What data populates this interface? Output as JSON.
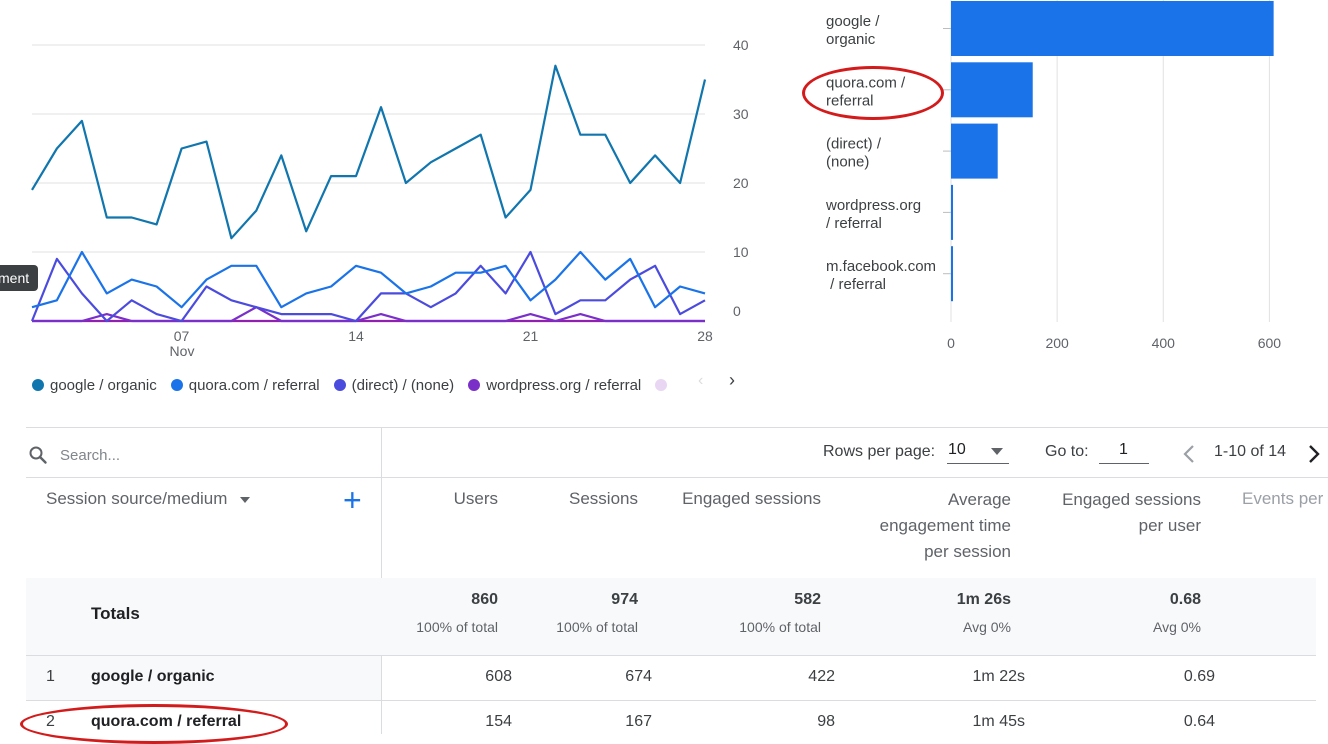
{
  "line_chart": {
    "type": "line",
    "y_ticks": [
      "0",
      "10",
      "20",
      "30",
      "40"
    ],
    "ylim": [
      0,
      40
    ],
    "x_ticks": [
      {
        "day": 7,
        "label": "07",
        "sublabel": "Nov"
      },
      {
        "day": 14,
        "label": "14",
        "sublabel": ""
      },
      {
        "day": 21,
        "label": "21",
        "sublabel": ""
      },
      {
        "day": 28,
        "label": "28",
        "sublabel": ""
      }
    ],
    "x_days": [
      1,
      2,
      3,
      4,
      5,
      6,
      7,
      8,
      9,
      10,
      11,
      12,
      13,
      14,
      15,
      16,
      17,
      18,
      19,
      20,
      21,
      22,
      23,
      24,
      25,
      26,
      27,
      28
    ],
    "series": [
      {
        "name": "google / organic",
        "color": "#1076ad",
        "values": [
          19,
          25,
          29,
          15,
          15,
          14,
          25,
          26,
          12,
          16,
          24,
          13,
          21,
          21,
          31,
          20,
          23,
          25,
          27,
          15,
          19,
          37,
          27,
          27,
          20,
          24,
          20,
          35
        ]
      },
      {
        "name": "quora.com / referral",
        "color": "#1a73e8",
        "values": [
          2,
          3,
          10,
          4,
          6,
          5,
          2,
          6,
          8,
          8,
          2,
          4,
          5,
          8,
          7,
          4,
          5,
          7,
          7,
          8,
          3,
          6,
          10,
          6,
          9,
          2,
          5,
          4
        ]
      },
      {
        "name": "(direct) / (none)",
        "color": "#4b4bde",
        "values": [
          0,
          9,
          4,
          0,
          3,
          1,
          0,
          5,
          3,
          2,
          1,
          1,
          1,
          0,
          4,
          4,
          2,
          4,
          8,
          4,
          10,
          1,
          3,
          3,
          6,
          8,
          1,
          3
        ]
      },
      {
        "name": "wordpress.org / referral",
        "color": "#7b2fc9",
        "values": [
          0,
          0,
          0,
          1,
          0,
          0,
          0,
          0,
          0,
          2,
          0,
          0,
          0,
          0,
          1,
          0,
          0,
          0,
          0,
          0,
          1,
          0,
          1,
          0,
          0,
          0,
          0,
          0
        ]
      },
      {
        "name": "",
        "color": "#8f20b0",
        "values": [
          0,
          0,
          0,
          0,
          0,
          0,
          0,
          0,
          0,
          0,
          0,
          0,
          0,
          0,
          0,
          0,
          0,
          0,
          0,
          0,
          0,
          0,
          0,
          0,
          0,
          0,
          0,
          0
        ]
      }
    ]
  },
  "legend": {
    "items": [
      {
        "label": "google / organic",
        "color": "#1076ad"
      },
      {
        "label": "quora.com / referral",
        "color": "#1a73e8"
      },
      {
        "label": "(direct) / (none)",
        "color": "#4b4bde"
      },
      {
        "label": "wordpress.org / referral",
        "color": "#7b2fc9"
      }
    ],
    "prev_glyph": "‹",
    "next_glyph": "›"
  },
  "tooltip_tab": "ment",
  "bar_chart": {
    "type": "bar",
    "orientation": "horizontal",
    "xlim": [
      0,
      620
    ],
    "x_ticks": [
      "0",
      "200",
      "400",
      "600"
    ],
    "bar_color": "#1a73e8",
    "categories": [
      {
        "line1": "google /",
        "line2": "organic"
      },
      {
        "line1": "quora.com /",
        "line2": "referral"
      },
      {
        "line1": "(direct) /",
        "line2": "(none)"
      },
      {
        "line1": "wordpress.org",
        "line2": "/ referral"
      },
      {
        "line1": "m.facebook.com",
        "line2": " / referral"
      }
    ],
    "values": [
      608,
      154,
      88,
      3,
      2
    ]
  },
  "table": {
    "search_placeholder": "Search...",
    "rows_per_page_label": "Rows per page:",
    "rows_per_page_value": "10",
    "goto_label": "Go to:",
    "goto_value": "1",
    "pagination_text": "1-10 of 14",
    "dimension_header": "Session source/medium",
    "add_glyph": "+",
    "columns": {
      "users": "Users",
      "sessions": "Sessions",
      "engaged_sessions": "Engaged sessions",
      "avg_time_l1": "Average",
      "avg_time_l2": "engagement time",
      "avg_time_l3": "per session",
      "eng_per_user_l1": "Engaged sessions",
      "eng_per_user_l2": "per user",
      "events": "Events per"
    },
    "totals": {
      "label": "Totals",
      "users": "860",
      "users_sub": "100% of total",
      "sessions": "974",
      "sessions_sub": "100% of total",
      "engaged": "582",
      "engaged_sub": "100% of total",
      "avg_time": "1m 26s",
      "avg_time_sub": "Avg 0%",
      "eng_per_user": "0.68",
      "eng_per_user_sub": "Avg 0%"
    },
    "rows": [
      {
        "index": "1",
        "source": "google / organic",
        "users": "608",
        "sessions": "674",
        "engaged": "422",
        "avg_time": "1m 22s",
        "eng_per_user": "0.69"
      },
      {
        "index": "2",
        "source": "quora.com / referral",
        "users": "154",
        "sessions": "167",
        "engaged": "98",
        "avg_time": "1m 45s",
        "eng_per_user": "0.64"
      }
    ]
  },
  "colors": {
    "annotation_red": "#d31b1b",
    "grid": "#e0e0e0",
    "text": "#3c4043",
    "muted": "#5f6368"
  }
}
